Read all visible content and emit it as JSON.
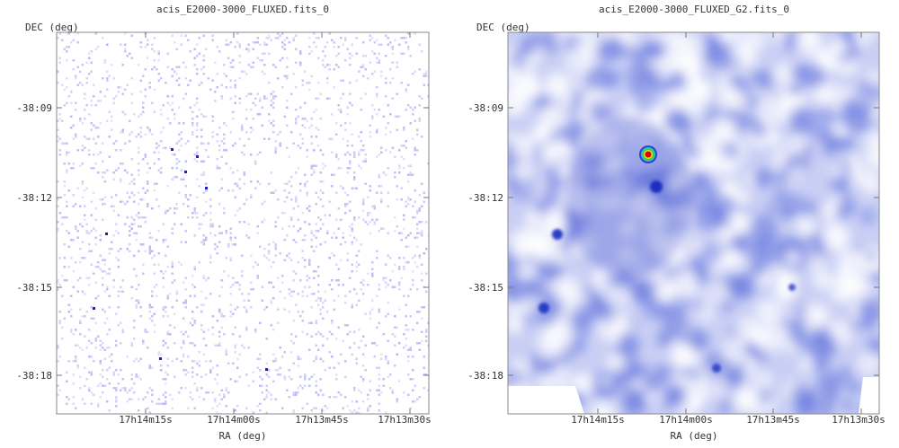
{
  "chart_data": [
    {
      "type": "heatmap",
      "title": "acis_E2000-3000_FLUXED.fits_0",
      "xlabel": "RA (deg)",
      "ylabel": "DEC (deg)",
      "x_ticks": [
        "17h14m15s",
        "17h14m00s",
        "17h13m45s",
        "17h13m30s"
      ],
      "y_ticks": [
        "-38:09",
        "-38:12",
        "-38:15",
        "-38:18"
      ],
      "colormap": "sparse counts, white to blue",
      "colors": {
        "low": "#ffffff",
        "mid": "#b4b4f4",
        "high": "#2020c0"
      }
    },
    {
      "type": "heatmap",
      "title": "acis_E2000-3000_FLUXED_G2.fits_0",
      "xlabel": "RA (deg)",
      "ylabel": "DEC (deg)",
      "x_ticks": [
        "17h14m15s",
        "17h14m00s",
        "17h13m45s",
        "17h13m30s"
      ],
      "y_ticks": [
        "-38:09",
        "-38:12",
        "-38:15",
        "-38:18"
      ],
      "colormap": "smoothed, white-blue-green-yellow-red",
      "colors": {
        "low": "#ffffff",
        "mid": "#6f7fe0",
        "high": "#e00000"
      }
    }
  ]
}
